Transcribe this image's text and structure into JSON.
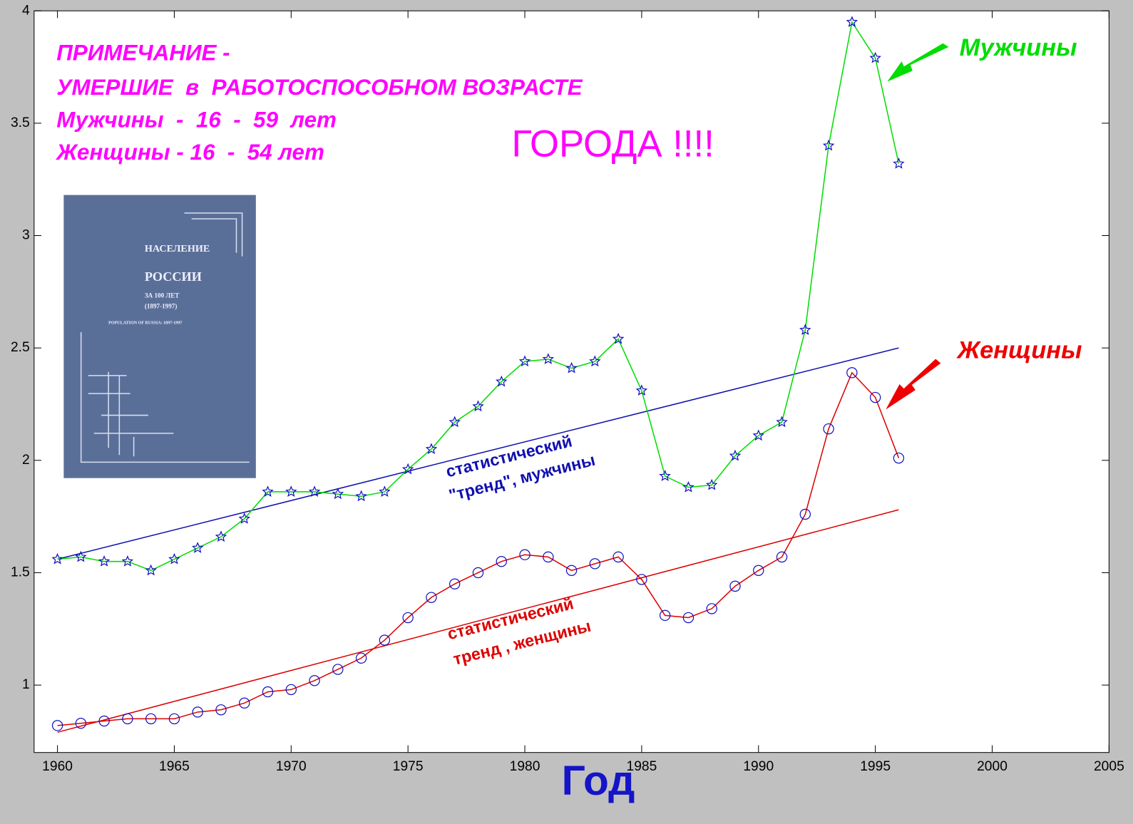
{
  "chart_data": {
    "type": "line",
    "xlabel": "Год",
    "x": [
      1960,
      1961,
      1962,
      1963,
      1964,
      1965,
      1966,
      1967,
      1968,
      1969,
      1970,
      1971,
      1972,
      1973,
      1974,
      1975,
      1976,
      1977,
      1978,
      1979,
      1980,
      1981,
      1982,
      1983,
      1984,
      1985,
      1986,
      1987,
      1988,
      1989,
      1990,
      1991,
      1992,
      1993,
      1994,
      1995,
      1996
    ],
    "series": [
      {
        "name": "Мужчины",
        "color": "#00dd00",
        "marker": "star",
        "marker_color": "#1010c0",
        "values": [
          1.56,
          1.57,
          1.55,
          1.55,
          1.51,
          1.56,
          1.61,
          1.66,
          1.74,
          1.86,
          1.86,
          1.86,
          1.85,
          1.84,
          1.86,
          1.96,
          2.05,
          2.17,
          2.24,
          2.35,
          2.44,
          2.45,
          2.41,
          2.44,
          2.54,
          2.31,
          1.93,
          1.88,
          1.89,
          2.02,
          2.11,
          2.17,
          2.58,
          3.4,
          3.95,
          3.79,
          3.32
        ]
      },
      {
        "name": "Женщины",
        "color": "#dd0000",
        "marker": "circle",
        "marker_color": "#1010c0",
        "values": [
          0.82,
          0.83,
          0.84,
          0.85,
          0.85,
          0.85,
          0.88,
          0.89,
          0.92,
          0.97,
          0.98,
          1.02,
          1.07,
          1.12,
          1.2,
          1.3,
          1.39,
          1.45,
          1.5,
          1.55,
          1.58,
          1.57,
          1.51,
          1.54,
          1.57,
          1.47,
          1.31,
          1.3,
          1.34,
          1.44,
          1.51,
          1.57,
          1.76,
          2.14,
          2.39,
          2.28,
          2.01
        ]
      }
    ],
    "trends": [
      {
        "color": "#1010b0",
        "x": [
          1960,
          1996
        ],
        "values": [
          1.56,
          2.5
        ]
      },
      {
        "color": "#dd0000",
        "x": [
          1960,
          1996
        ],
        "values": [
          0.79,
          1.78
        ]
      }
    ],
    "xlim": [
      1959,
      2005
    ],
    "xticks": [
      1960,
      1965,
      1970,
      1975,
      1980,
      1985,
      1990,
      1995,
      2000,
      2005
    ],
    "ylim": [
      0.7,
      4
    ],
    "yticks": [
      1,
      1.5,
      2,
      2.5,
      3,
      3.5,
      4
    ],
    "grid": false,
    "annotations": [
      {
        "text": "ПРИМЕЧАНИЕ -",
        "color": "#ff00ff"
      },
      {
        "text": "УМЕРШИЕ  в  РАБОТОСПОСОБНОМ ВОЗРАСТЕ",
        "color": "#ff00ff"
      },
      {
        "text": "Мужчины  -  16  -  59  лет",
        "color": "#ff00ff"
      },
      {
        "text": "Женщины - 16  -  54 лет",
        "color": "#ff00ff"
      },
      {
        "text": "ГОРОДА !!!!",
        "color": "#ff00ff"
      },
      {
        "text": "Мужчины",
        "color": "#00dd00"
      },
      {
        "text": "Женщины",
        "color": "#ee0000"
      },
      {
        "text": "статистический",
        "color": "#1010b0"
      },
      {
        "text": "\"тренд\", мужчины",
        "color": "#1010b0"
      },
      {
        "text": "статистический",
        "color": "#dd0000"
      },
      {
        "text": "тренд , женщины",
        "color": "#dd0000"
      }
    ],
    "inset": {
      "lines": [
        "НАСЕЛЕНИЕ",
        "РОССИИ",
        "ЗА 100 ЛЕТ",
        "(1897-1997)",
        "POPULATION OF RUSSIA: 1897-1997"
      ]
    }
  }
}
